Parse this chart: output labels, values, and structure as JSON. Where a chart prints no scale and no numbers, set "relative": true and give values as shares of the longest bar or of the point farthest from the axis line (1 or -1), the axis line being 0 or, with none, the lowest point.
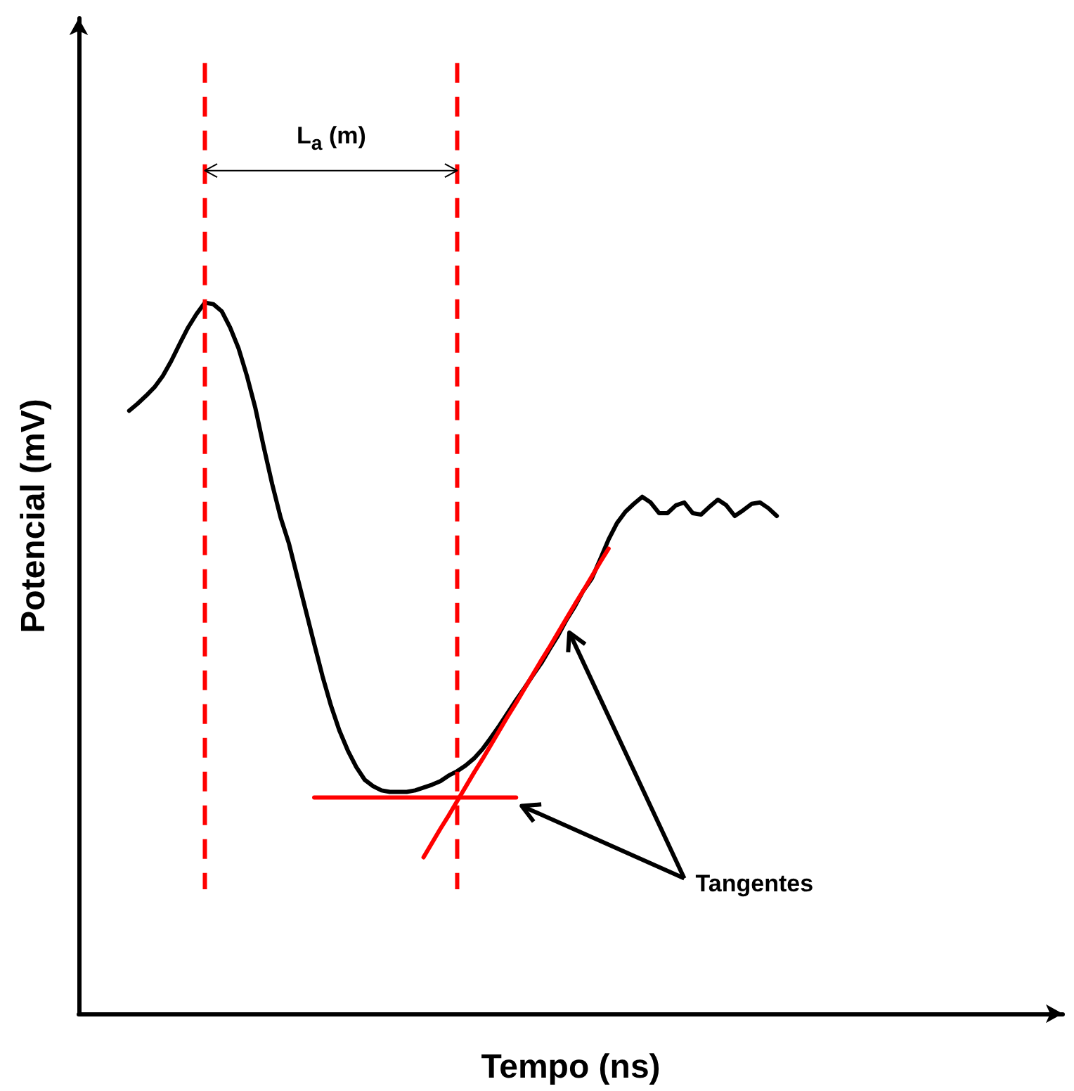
{
  "chart_data": {
    "type": "line",
    "relative": true,
    "xlabel": "Tempo (ns)",
    "ylabel": "Potencial (mV)",
    "grid": false,
    "marker": "none",
    "line_style": "solid",
    "categories": [
      null,
      null,
      null,
      null,
      null,
      null,
      null,
      null,
      null,
      null,
      null,
      null,
      null,
      null,
      null,
      null,
      null,
      null,
      null,
      null,
      null,
      null,
      null,
      null,
      null,
      null,
      null,
      null,
      null,
      null,
      null,
      null,
      null,
      null,
      null,
      null,
      null,
      null,
      null,
      null,
      null,
      null,
      null,
      null,
      null,
      null,
      null,
      null,
      null,
      null,
      null,
      null,
      null,
      null,
      null,
      null,
      null,
      null,
      null,
      null,
      null,
      null,
      null,
      null,
      null,
      null,
      null,
      null,
      null,
      null,
      null,
      null,
      null,
      null,
      null,
      null,
      null,
      null
    ],
    "series": [
      {
        "color": "#000000",
        "values": [
          0.848,
          0.858,
          0.869,
          0.881,
          0.897,
          0.918,
          0.942,
          0.965,
          0.984,
          1,
          0.998,
          0.988,
          0.965,
          0.936,
          0.897,
          0.852,
          0.797,
          0.745,
          0.698,
          0.661,
          0.614,
          0.567,
          0.52,
          0.474,
          0.433,
          0.398,
          0.37,
          0.347,
          0.329,
          0.32,
          0.314,
          0.312,
          0.312,
          0.312,
          0.314,
          0.318,
          0.322,
          0.327,
          0.335,
          0.341,
          0.349,
          0.359,
          0.372,
          0.388,
          0.405,
          0.423,
          0.441,
          0.458,
          0.476,
          0.493,
          0.513,
          0.532,
          0.554,
          0.573,
          0.595,
          0.612,
          0.639,
          0.667,
          0.69,
          0.706,
          0.717,
          0.727,
          0.719,
          0.704,
          0.704,
          0.715,
          0.719,
          0.704,
          0.702,
          0.713,
          0.723,
          0.715,
          0.7,
          0.708,
          0.717,
          0.719,
          0.711,
          0.7
        ]
      },
      {
        "type": "line",
        "color": "#ff0000",
        "values": [
          null,
          null,
          null,
          null,
          null,
          null,
          null,
          null,
          null,
          null,
          null,
          null,
          null,
          null,
          null,
          null,
          null,
          null,
          null,
          null,
          null,
          null,
          0.304,
          0.304,
          0.304,
          0.304,
          0.304,
          0.304,
          0.304,
          0.304,
          0.304,
          0.304,
          0.304,
          0.304,
          0.304,
          0.304,
          0.304,
          0.304,
          0.304,
          0.304,
          0.304,
          0.304,
          0.304,
          0.304,
          0.304,
          0.304,
          0.304,
          null,
          null,
          null,
          null,
          null,
          null,
          null,
          null,
          null,
          null,
          null,
          null,
          null,
          null,
          null,
          null,
          null,
          null,
          null,
          null,
          null,
          null,
          null,
          null,
          null,
          null,
          null,
          null,
          null,
          null,
          null
        ]
      },
      {
        "type": "line",
        "color": "#ff0000",
        "values": [
          null,
          null,
          null,
          null,
          null,
          null,
          null,
          null,
          null,
          null,
          null,
          null,
          null,
          null,
          null,
          null,
          null,
          null,
          null,
          null,
          null,
          null,
          null,
          null,
          null,
          null,
          null,
          null,
          null,
          null,
          null,
          null,
          null,
          null,
          null,
          0.22,
          0.24,
          0.26,
          0.279,
          0.299,
          0.319,
          0.339,
          0.358,
          0.378,
          0.398,
          0.418,
          0.437,
          0.457,
          0.477,
          0.497,
          0.516,
          0.536,
          0.556,
          0.576,
          0.595,
          0.615,
          0.635,
          0.654,
          null,
          null,
          null,
          null,
          null,
          null,
          null,
          null,
          null,
          null,
          null,
          null,
          null,
          null,
          null,
          null,
          null,
          null,
          null,
          null
        ]
      }
    ],
    "annotations": [
      "L$_{a}$ (m)",
      "Tangentes"
    ]
  }
}
